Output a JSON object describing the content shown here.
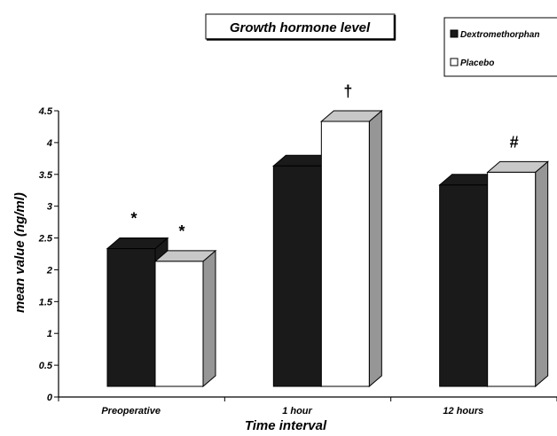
{
  "chart_data": {
    "type": "bar",
    "title": "Growth hormone level",
    "xlabel": "Time interval",
    "ylabel": "mean value (ng/ml)",
    "categories": [
      "Preoperative",
      "1 hour",
      "12 hours"
    ],
    "series": [
      {
        "name": "Dextromethorphan",
        "values": [
          2.5,
          3.8,
          3.5
        ],
        "color": "#1a1a1a"
      },
      {
        "name": "Placebo",
        "values": [
          2.3,
          4.5,
          3.7
        ],
        "color": "#ffffff"
      }
    ],
    "ylim": [
      0,
      4.5
    ],
    "yticks": [
      "0",
      "0.5",
      "1",
      "1.5",
      "2",
      "2.5",
      "3",
      "3.5",
      "4",
      "4.5"
    ],
    "annotations": [
      {
        "category": "Preoperative",
        "series": "Dextromethorphan",
        "text": "*"
      },
      {
        "category": "Preoperative",
        "series": "Placebo",
        "text": "*"
      },
      {
        "category": "1 hour",
        "series": "Placebo",
        "text": "†"
      },
      {
        "category": "12 hours",
        "series": "Placebo",
        "text": "#"
      }
    ],
    "legend_position": "top-right",
    "grid": false,
    "style": "3d"
  }
}
